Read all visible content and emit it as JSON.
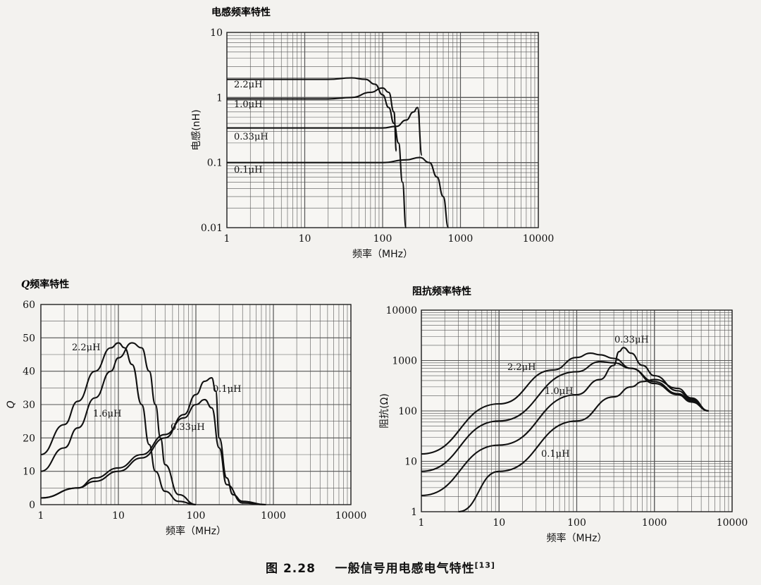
{
  "figure": {
    "caption_num": "图 2.28",
    "caption_text": "一般信号用电感电气特性",
    "caption_ref": "[13]"
  },
  "chart_data": [
    {
      "id": "inductance",
      "type": "line",
      "title": "电感频率特性",
      "xlabel": "频率（MHz）",
      "ylabel": "电感(nH)",
      "xscale": "log",
      "yscale": "log",
      "xlim": [
        1,
        10000
      ],
      "ylim": [
        0.01,
        10
      ],
      "xticks": [
        "1",
        "10",
        "100",
        "1000",
        "10000"
      ],
      "yticks": [
        "0.01",
        "0.1",
        "1",
        "10"
      ],
      "grid": true,
      "series": [
        {
          "name": "2.2μH",
          "x": [
            1,
            20,
            40,
            60,
            80,
            100,
            120,
            140,
            160,
            180,
            200
          ],
          "y": [
            1.9,
            1.9,
            2.0,
            1.9,
            1.6,
            1.1,
            0.7,
            0.4,
            0.2,
            0.05,
            0.01
          ]
        },
        {
          "name": "1.0μH",
          "x": [
            1,
            20,
            40,
            70,
            100,
            120,
            140,
            150
          ],
          "y": [
            0.95,
            0.95,
            1.0,
            1.2,
            1.4,
            1.2,
            0.6,
            0.15
          ]
        },
        {
          "name": "0.33μH",
          "x": [
            1,
            100,
            150,
            200,
            250,
            280,
            320
          ],
          "y": [
            0.34,
            0.34,
            0.36,
            0.45,
            0.6,
            0.7,
            0.13
          ]
        },
        {
          "name": "0.1μH",
          "x": [
            1,
            100,
            200,
            300,
            400,
            500,
            600,
            700
          ],
          "y": [
            0.1,
            0.1,
            0.11,
            0.12,
            0.1,
            0.06,
            0.03,
            0.01
          ]
        }
      ]
    },
    {
      "id": "q",
      "type": "line",
      "title": "Q频率特性",
      "title_italic": "Q",
      "title_rest": "频率特性",
      "xlabel": "频率（MHz）",
      "ylabel": "Q",
      "xscale": "log",
      "yscale": "linear",
      "xlim": [
        1,
        10000
      ],
      "ylim": [
        0,
        60
      ],
      "xticks": [
        "1",
        "10",
        "100",
        "1000",
        "10000"
      ],
      "yticks": [
        "0",
        "10",
        "20",
        "30",
        "40",
        "50",
        "60"
      ],
      "grid": true,
      "series": [
        {
          "name": "2.2μH",
          "x": [
            1,
            2,
            3,
            5,
            8,
            10,
            12,
            15,
            20,
            25,
            30,
            40,
            60,
            100
          ],
          "y": [
            15,
            24,
            31,
            40,
            47,
            48.5,
            47,
            42,
            30,
            18,
            10,
            4,
            1,
            0
          ]
        },
        {
          "name": "1.6μH",
          "x": [
            1,
            2,
            3,
            5,
            8,
            10,
            15,
            20,
            25,
            30,
            35,
            40,
            60,
            100
          ],
          "y": [
            10,
            17,
            23,
            32,
            40,
            44,
            48.5,
            47,
            40,
            30,
            20,
            12,
            3,
            0
          ]
        },
        {
          "name": "0.33μH",
          "x": [
            1,
            3,
            5,
            10,
            20,
            40,
            70,
            100,
            130,
            160,
            200,
            250,
            400,
            800
          ],
          "y": [
            2,
            5,
            8,
            11,
            15,
            21,
            26,
            30,
            31.5,
            29,
            17,
            6,
            0.5,
            0
          ]
        },
        {
          "name": "0.1μH",
          "x": [
            1,
            3,
            5,
            10,
            20,
            40,
            70,
            100,
            130,
            160,
            180,
            200,
            250,
            300,
            400,
            800
          ],
          "y": [
            2,
            5,
            7,
            10,
            14,
            20,
            27,
            33,
            37,
            38,
            34,
            20,
            8,
            3,
            1,
            0
          ]
        }
      ],
      "label_names": [
        "2.2μH",
        "1.6μH",
        "0.33μH",
        "0.1μH"
      ]
    },
    {
      "id": "impedance",
      "type": "line",
      "title": "阻抗频率特性",
      "xlabel": "频率（MHz）",
      "ylabel": "阻抗(Ω)",
      "xscale": "log",
      "yscale": "log",
      "xlim": [
        1,
        10000
      ],
      "ylim": [
        1,
        10000
      ],
      "xticks": [
        "1",
        "10",
        "100",
        "1000",
        "10000"
      ],
      "yticks": [
        "1",
        "10",
        "100",
        "1000",
        "10000"
      ],
      "grid": true,
      "series": [
        {
          "name": "2.2μH",
          "x": [
            1,
            10,
            50,
            100,
            150,
            200,
            300,
            500,
            1000,
            2000,
            3000,
            5000
          ],
          "y": [
            14,
            138,
            650,
            1150,
            1400,
            1300,
            1100,
            700,
            350,
            210,
            150,
            100
          ]
        },
        {
          "name": "1.0μH",
          "x": [
            1,
            10,
            100,
            200,
            300,
            500,
            1000,
            2000,
            3000,
            5000
          ],
          "y": [
            6.3,
            63,
            600,
            950,
            900,
            700,
            380,
            220,
            160,
            100
          ]
        },
        {
          "name": "0.33μH",
          "x": [
            1,
            10,
            100,
            200,
            300,
            350,
            400,
            500,
            700,
            1000,
            2000,
            3000,
            5000
          ],
          "y": [
            2.1,
            21,
            210,
            420,
            800,
            1500,
            1800,
            1400,
            800,
            500,
            250,
            170,
            100
          ]
        },
        {
          "name": "0.1μH",
          "x": [
            3,
            10,
            100,
            300,
            500,
            700,
            1000,
            2000,
            3000,
            5000
          ],
          "y": [
            1,
            6.3,
            63,
            190,
            300,
            380,
            420,
            280,
            180,
            100
          ]
        }
      ]
    }
  ]
}
